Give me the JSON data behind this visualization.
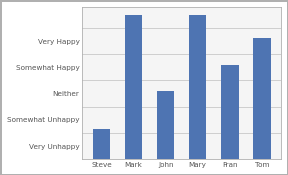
{
  "categories": [
    "Steve",
    "Mark",
    "John",
    "Mary",
    "Fran",
    "Tom"
  ],
  "values": [
    1.15,
    5.5,
    2.6,
    5.5,
    3.6,
    4.6
  ],
  "bar_color": "#4e74b2",
  "ytick_labels": [
    "Very Unhappy",
    "Somewhat Unhappy",
    "Neither",
    "Somewhat Happy",
    "Very Happy"
  ],
  "ytick_positions": [
    0.5,
    1.5,
    2.5,
    3.5,
    4.5
  ],
  "gridline_positions": [
    0,
    1,
    2,
    3,
    4,
    5
  ],
  "ylim": [
    0,
    5.8
  ],
  "xlim": [
    -0.6,
    5.6
  ],
  "background_color": "#ffffff",
  "plot_bg_color": "#f5f5f5",
  "grid_color": "#c8c8c8",
  "border_color": "#b0b0b0",
  "bar_width": 0.55,
  "tick_fontsize": 5.2,
  "figsize": [
    2.88,
    1.75
  ],
  "dpi": 100
}
